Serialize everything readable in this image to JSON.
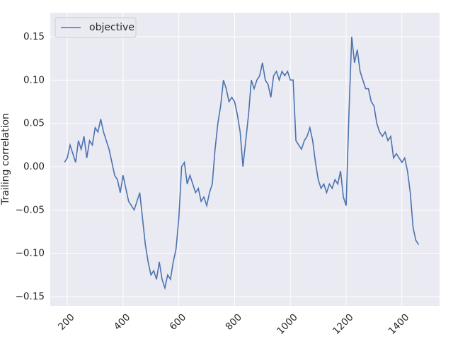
{
  "chart_data": {
    "type": "line",
    "y_label": "Trailing correlation",
    "x": [
      190,
      200,
      210,
      220,
      230,
      240,
      250,
      260,
      270,
      280,
      290,
      300,
      310,
      320,
      330,
      340,
      350,
      360,
      370,
      380,
      390,
      400,
      410,
      420,
      430,
      440,
      450,
      460,
      470,
      480,
      490,
      500,
      510,
      520,
      530,
      540,
      550,
      560,
      570,
      580,
      590,
      600,
      610,
      620,
      630,
      640,
      650,
      660,
      670,
      680,
      690,
      700,
      710,
      720,
      730,
      740,
      750,
      760,
      770,
      780,
      790,
      800,
      810,
      820,
      830,
      840,
      850,
      860,
      870,
      880,
      890,
      900,
      910,
      920,
      930,
      940,
      950,
      960,
      970,
      980,
      990,
      1000,
      1010,
      1020,
      1030,
      1040,
      1050,
      1060,
      1070,
      1080,
      1090,
      1100,
      1110,
      1120,
      1130,
      1140,
      1150,
      1160,
      1170,
      1180,
      1190,
      1200,
      1210,
      1220,
      1230,
      1240,
      1250,
      1260,
      1270,
      1280,
      1290,
      1300,
      1310,
      1320,
      1330,
      1340,
      1350,
      1360,
      1370,
      1380,
      1390,
      1400,
      1410,
      1420,
      1430,
      1440,
      1450,
      1460
    ],
    "series": [
      {
        "name": "objective",
        "color": "#4c72b0",
        "values": [
          0.005,
          0.01,
          0.025,
          0.015,
          0.005,
          0.03,
          0.02,
          0.035,
          0.01,
          0.03,
          0.025,
          0.045,
          0.04,
          0.055,
          0.04,
          0.03,
          0.02,
          0.005,
          -0.01,
          -0.015,
          -0.03,
          -0.01,
          -0.025,
          -0.04,
          -0.045,
          -0.05,
          -0.04,
          -0.03,
          -0.06,
          -0.09,
          -0.11,
          -0.125,
          -0.12,
          -0.13,
          -0.11,
          -0.13,
          -0.14,
          -0.125,
          -0.13,
          -0.11,
          -0.095,
          -0.06,
          0.0,
          0.005,
          -0.02,
          -0.01,
          -0.02,
          -0.03,
          -0.025,
          -0.04,
          -0.035,
          -0.045,
          -0.03,
          -0.02,
          0.02,
          0.05,
          0.07,
          0.1,
          0.09,
          0.075,
          0.08,
          0.075,
          0.06,
          0.04,
          0.0,
          0.03,
          0.06,
          0.1,
          0.09,
          0.1,
          0.105,
          0.12,
          0.1,
          0.095,
          0.08,
          0.105,
          0.11,
          0.1,
          0.11,
          0.105,
          0.11,
          0.1,
          0.1,
          0.03,
          0.025,
          0.02,
          0.03,
          0.035,
          0.045,
          0.03,
          0.005,
          -0.015,
          -0.025,
          -0.02,
          -0.03,
          -0.02,
          -0.025,
          -0.015,
          -0.02,
          -0.005,
          -0.035,
          -0.045,
          0.06,
          0.15,
          0.12,
          0.135,
          0.11,
          0.1,
          0.09,
          0.09,
          0.075,
          0.07,
          0.05,
          0.04,
          0.035,
          0.04,
          0.03,
          0.035,
          0.01,
          0.015,
          0.01,
          0.005,
          0.01,
          -0.005,
          -0.03,
          -0.07,
          -0.085,
          -0.09
        ]
      }
    ],
    "xlim": [
      139,
      1535
    ],
    "ylim": [
      -0.1606,
      0.1777
    ],
    "xticks": [
      200,
      400,
      600,
      800,
      1000,
      1200,
      1400
    ],
    "yticks": [
      {
        "value": -0.15,
        "label": "−0.15"
      },
      {
        "value": -0.1,
        "label": "−0.10"
      },
      {
        "value": -0.05,
        "label": "−0.05"
      },
      {
        "value": 0,
        "label": "0.00"
      },
      {
        "value": 0.05,
        "label": "0.05"
      },
      {
        "value": 0.1,
        "label": "0.10"
      },
      {
        "value": 0.15,
        "label": "0.15"
      }
    ],
    "grid": true,
    "legend": "upper-left"
  }
}
